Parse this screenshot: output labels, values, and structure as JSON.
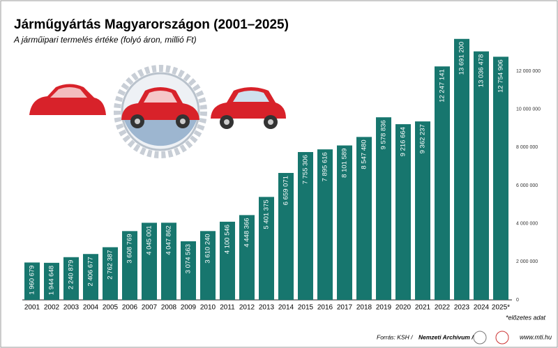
{
  "chart_data": {
    "type": "bar",
    "title": "Járműgyártás Magyarországon (2001–2025)",
    "subtitle": "A járműipari termelés értéke (folyó áron, millió Ft)",
    "categories": [
      "2001",
      "2002",
      "2003",
      "2004",
      "2005",
      "2006",
      "2007",
      "2008",
      "2009",
      "2010",
      "2011",
      "2012",
      "2013",
      "2014",
      "2015",
      "2016",
      "2017",
      "2018",
      "2019",
      "2020",
      "2021",
      "2022",
      "2023",
      "2024",
      "2025*"
    ],
    "values": [
      1960679,
      1944648,
      2240879,
      2406677,
      2762387,
      3608769,
      4045001,
      4047862,
      3074563,
      3610240,
      4100546,
      4448366,
      5401375,
      6659071,
      7755306,
      7895616,
      8101589,
      8547480,
      9578836,
      9216664,
      9362237,
      12247141,
      13691200,
      13036478,
      12754906
    ],
    "value_labels": [
      "1 960 679",
      "1 944 648",
      "2 240 879",
      "2 406 677",
      "2 762 387",
      "3 608 769",
      "4 045 001",
      "4 047 862",
      "3 074 563",
      "3 610 240",
      "4 100 546",
      "4 448 366",
      "5 401 375",
      "6 659 071",
      "7 755 306",
      "7 895 616",
      "8 101 589",
      "8 547 480",
      "9 578 836",
      "9 216 664",
      "9 362 237",
      "12 247 141",
      "13 691 200",
      "13 036 478",
      "12 754 906"
    ],
    "color": "#17766e",
    "ylim": [
      0,
      15000000
    ],
    "yticks": [
      0,
      {
        "value": 2000000,
        "label": "2 000 000"
      },
      {
        "value": 4000000,
        "label": "4 000 000"
      },
      {
        "value": 6000000,
        "label": "6 000 000"
      },
      {
        "value": 8000000,
        "label": "8 000 000"
      },
      {
        "value": 10000000,
        "label": "10 000 000"
      },
      {
        "value": 12000000,
        "label": "12 000 000"
      }
    ],
    "note": "*előzetes adat",
    "source": "Forrás: KSH /",
    "source_bold": "Nemzeti Archívum / MTI",
    "website": "www.mti.hu"
  }
}
